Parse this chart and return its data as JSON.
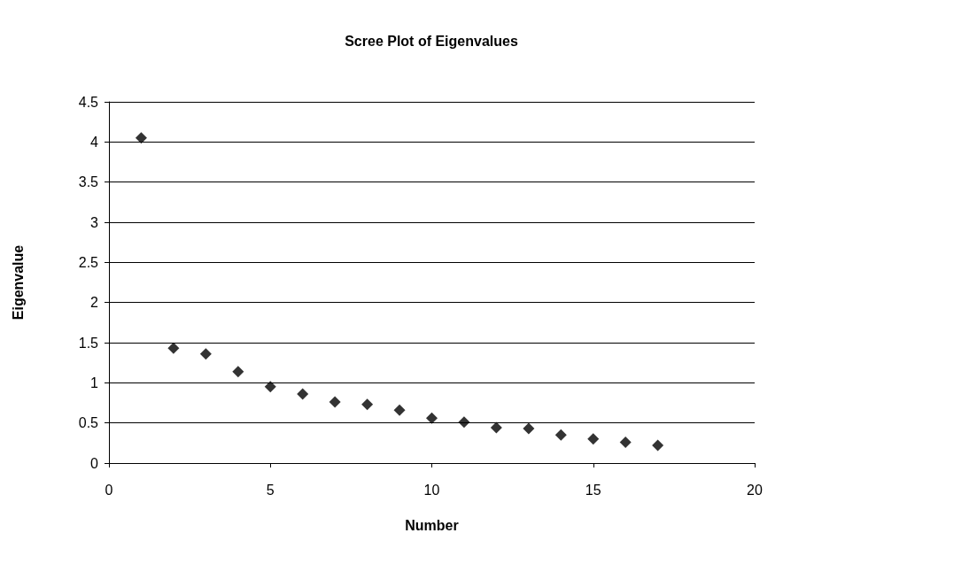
{
  "chart_data": {
    "type": "scatter",
    "title": "Scree Plot of Eigenvalues",
    "xlabel": "Number",
    "ylabel": "Eigenvalue",
    "x": [
      1,
      2,
      3,
      4,
      5,
      6,
      7,
      8,
      9,
      10,
      11,
      12,
      13,
      14,
      15,
      16,
      17
    ],
    "series": [
      {
        "color": "#000000",
        "values": [
          4.05,
          1.43,
          1.36,
          1.14,
          0.95,
          0.86,
          0.76,
          0.73,
          0.66,
          0.56,
          0.51,
          0.44,
          0.43,
          0.35,
          0.3,
          0.26,
          0.22
        ]
      }
    ],
    "xlim": [
      0,
      20
    ],
    "xticks": [
      0,
      5,
      10,
      15,
      20
    ],
    "ylim": [
      0,
      4.5
    ],
    "yticks": [
      0,
      0.5,
      1,
      1.5,
      2,
      2.5,
      3,
      3.5,
      4,
      4.5
    ],
    "grid": "y",
    "marker": "diamond"
  }
}
